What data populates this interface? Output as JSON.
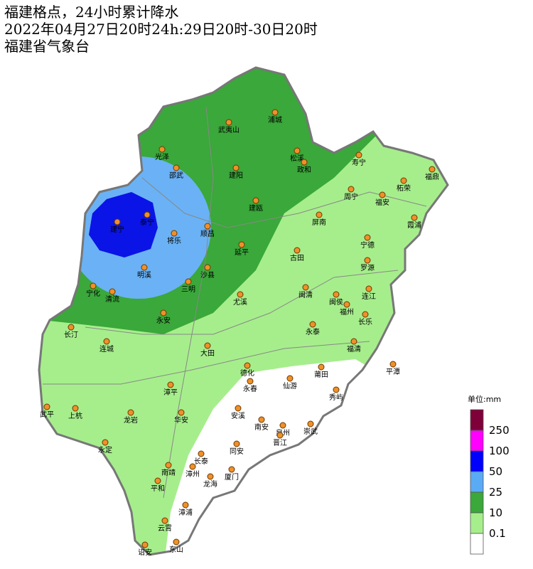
{
  "header": {
    "lines": [
      "福建格点，24小时累计降水",
      "2022年04月27日20时24h:29日20时-30日20时",
      "福建省气象台"
    ]
  },
  "legend": {
    "unit": "单位:mm",
    "labels": [
      "250",
      "100",
      "50",
      "25",
      "10",
      "0.1"
    ]
  },
  "cities": [
    "浦城",
    "武夷山",
    "松溪",
    "政和",
    "光泽",
    "邵武",
    "建阳",
    "寿宁",
    "福鼎",
    "柘荣",
    "周宁",
    "福安",
    "建瓯",
    "泰宁",
    "建宁",
    "将乐",
    "顺昌",
    "屏南",
    "霞浦",
    "宁德",
    "延平",
    "古田",
    "罗源",
    "明溪",
    "沙县",
    "三明",
    "宁化",
    "清流",
    "闽清",
    "闽侯",
    "连江",
    "尤溪",
    "福州",
    "长乐",
    "永安",
    "永泰",
    "长汀",
    "连城",
    "福清",
    "大田",
    "平潭",
    "德化",
    "莆田",
    "永春",
    "仙游",
    "漳平",
    "秀屿",
    "武平",
    "上杭",
    "龙岩",
    "华安",
    "安溪",
    "南安",
    "泉州",
    "崇武",
    "晋江",
    "永定",
    "同安",
    "长泰",
    "南靖",
    "漳州",
    "厦门",
    "龙海",
    "平和",
    "漳浦",
    "云霄",
    "诏安",
    "东山"
  ]
}
